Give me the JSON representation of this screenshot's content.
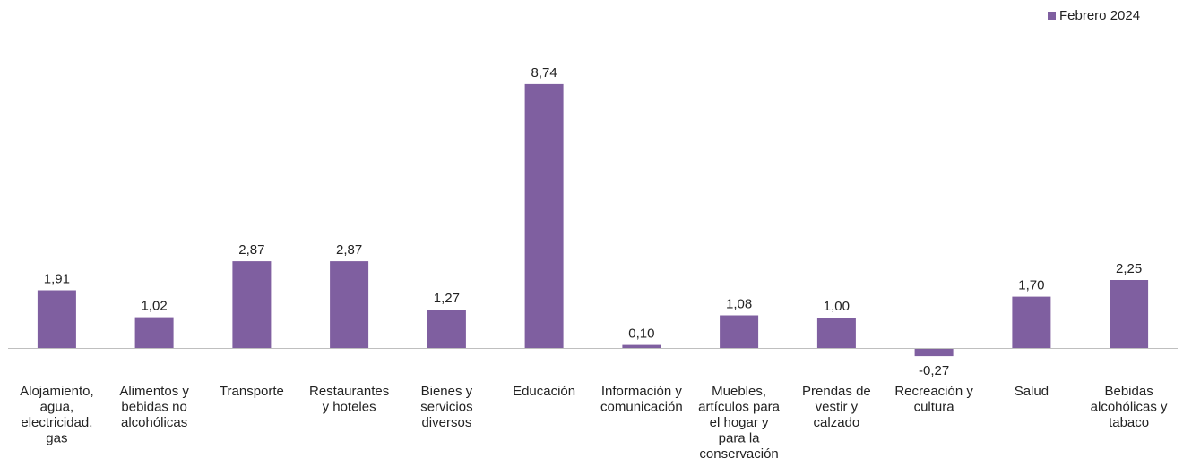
{
  "chart_data": {
    "type": "bar",
    "categories": [
      "Alojamiento, agua, electricidad, gas",
      "Alimentos y bebidas no alcohólicas",
      "Transporte",
      "Restaurantes y hoteles",
      "Bienes y servicios diversos",
      "Educación",
      "Información y comunicación",
      "Muebles, artículos para el hogar y para la conservación",
      "Prendas de vestir y calzado",
      "Recreación y cultura",
      "Salud",
      "Bebidas alcohólicas y tabaco"
    ],
    "category_label_lines": [
      [
        "Alojamiento,",
        "agua,",
        "electricidad,",
        "gas"
      ],
      [
        "Alimentos y",
        "bebidas no",
        "alcohólicas"
      ],
      [
        "Transporte"
      ],
      [
        "Restaurantes",
        "y hoteles"
      ],
      [
        "Bienes y",
        "servicios",
        "diversos"
      ],
      [
        "Educación"
      ],
      [
        "Información y",
        "comunicación"
      ],
      [
        "Muebles,",
        "artículos para",
        "el hogar y",
        "para la",
        "conservación"
      ],
      [
        "Prendas de",
        "vestir y",
        "calzado"
      ],
      [
        "Recreación y",
        "cultura"
      ],
      [
        "Salud"
      ],
      [
        "Bebidas",
        "alcohólicas y",
        "tabaco"
      ]
    ],
    "series": [
      {
        "name": "Febrero 2024",
        "values": [
          1.91,
          1.02,
          2.87,
          2.87,
          1.27,
          8.74,
          0.1,
          1.08,
          1.0,
          -0.27,
          1.7,
          2.25
        ],
        "value_labels": [
          "1,91",
          "1,02",
          "2,87",
          "2,87",
          "1,27",
          "8,74",
          "0,10",
          "1,08",
          "1,00",
          "-0,27",
          "1,70",
          "2,25"
        ]
      }
    ],
    "xlabel": "",
    "ylabel": "",
    "ylim": [
      -0.5,
      10.5
    ],
    "grid": false,
    "legend_position": "top-right",
    "bar_color": "#7f5fa0",
    "axis_color": "#bfbfbf"
  }
}
